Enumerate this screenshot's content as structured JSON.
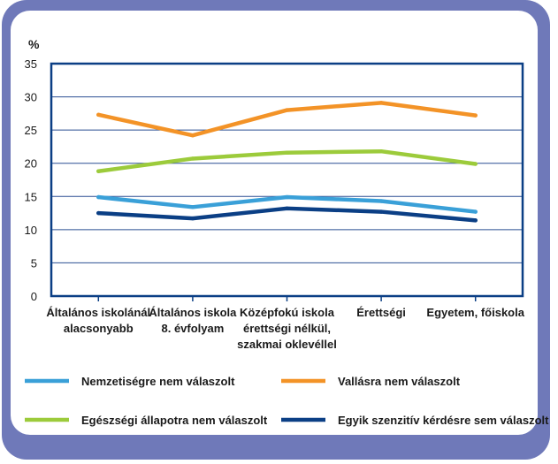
{
  "chart_data": {
    "type": "line",
    "ylabel": "%",
    "ylim": [
      0,
      35
    ],
    "yticks": [
      "0",
      "5",
      "10",
      "15",
      "20",
      "25",
      "30",
      "35"
    ],
    "categories": [
      [
        "Általános iskolánál",
        "alacsonyabb"
      ],
      [
        "Általános iskola",
        "8. évfolyam"
      ],
      [
        "Középfokú iskola",
        "érettségi nélkül,",
        "szakmai oklevéllel"
      ],
      [
        "Érettségi"
      ],
      [
        "Egyetem, főiskola"
      ]
    ],
    "grid": true,
    "legend_placement": "bottom",
    "series": [
      {
        "name": "Nemzetiségre nem válaszolt",
        "color": "#3aa0d8",
        "values": [
          14.9,
          13.4,
          14.9,
          14.3,
          12.7
        ]
      },
      {
        "name": "Vallásra nem válaszolt",
        "color": "#f39327",
        "values": [
          27.3,
          24.2,
          28.0,
          29.1,
          27.2
        ]
      },
      {
        "name": "Egészségi állapotra nem válaszolt",
        "color": "#9ccb3b",
        "values": [
          18.8,
          20.7,
          21.6,
          21.8,
          19.9
        ]
      },
      {
        "name": "Egyik szenzitív kérdésre sem válaszolt",
        "color": "#0b3f85",
        "values": [
          12.5,
          11.7,
          13.2,
          12.7,
          11.4
        ]
      }
    ]
  }
}
